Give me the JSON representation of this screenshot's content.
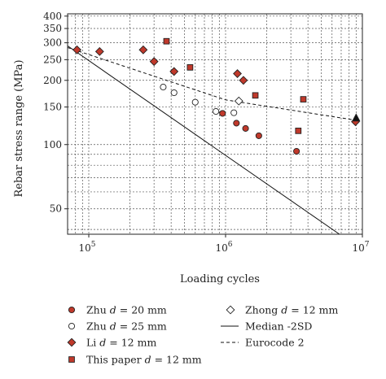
{
  "chart_data": {
    "type": "scatter",
    "xlabel": "Loading cycles",
    "ylabel": "Rebar stress range (MPa)",
    "xscale": "log",
    "yscale": "log",
    "xlim": [
      70000,
      10000000
    ],
    "ylim": [
      38,
      410
    ],
    "grid": true,
    "x_ticks": [
      {
        "value": 100000,
        "base": "10",
        "exp": "5"
      },
      {
        "value": 1000000,
        "base": "10",
        "exp": "6"
      },
      {
        "value": 10000000,
        "base": "10",
        "exp": "7"
      }
    ],
    "y_ticks": [
      {
        "value": 50,
        "label": "50"
      },
      {
        "value": 100,
        "label": "100"
      },
      {
        "value": 150,
        "label": "150"
      },
      {
        "value": 200,
        "label": "200"
      },
      {
        "value": 250,
        "label": "250"
      },
      {
        "value": 300,
        "label": "300"
      },
      {
        "value": 350,
        "label": "350"
      },
      {
        "value": 400,
        "label": "400"
      }
    ],
    "legend_position": "bottom",
    "series": [
      {
        "name": "Zhu d = 20 mm",
        "name_parts": [
          "Zhu ",
          "d",
          " = 20 mm"
        ],
        "marker": "circle-filled",
        "color": "#c0392b",
        "points": [
          [
            950000,
            140
          ],
          [
            1200000,
            126
          ],
          [
            1400000,
            119
          ],
          [
            1750000,
            110
          ],
          [
            3300000,
            93
          ]
        ]
      },
      {
        "name": "Zhu d = 25 mm",
        "name_parts": [
          "Zhu ",
          "d",
          " = 25 mm"
        ],
        "marker": "circle-open",
        "color": "#ffffff",
        "points": [
          [
            350000,
            186
          ],
          [
            420000,
            175
          ],
          [
            600000,
            158
          ],
          [
            850000,
            143
          ],
          [
            1150000,
            141
          ]
        ]
      },
      {
        "name": "Li d = 12 mm",
        "name_parts": [
          "Li ",
          "d",
          " = 12 mm"
        ],
        "marker": "diamond-filled",
        "color": "#c0392b",
        "points": [
          [
            82000,
            278
          ],
          [
            120000,
            273
          ],
          [
            250000,
            278
          ],
          [
            300000,
            245
          ],
          [
            420000,
            220
          ],
          [
            1220000,
            215
          ],
          [
            1350000,
            200
          ],
          [
            8900000,
            128
          ]
        ]
      },
      {
        "name": "This paper d = 12 mm",
        "name_parts": [
          "This paper ",
          "d",
          " = 12 mm"
        ],
        "marker": "square-filled",
        "color": "#c0392b",
        "points": [
          [
            370000,
            305
          ],
          [
            550000,
            230
          ],
          [
            1650000,
            170
          ],
          [
            3400000,
            116
          ],
          [
            3700000,
            163
          ]
        ]
      },
      {
        "name": "Zhong d = 12 mm",
        "name_parts": [
          "Zhong ",
          "d",
          " = 12 mm"
        ],
        "marker": "diamond-open",
        "color": "#ffffff",
        "points": [
          [
            1250000,
            160
          ]
        ]
      },
      {
        "name": "Median -2SD",
        "name_parts": [
          "Median -2SD"
        ],
        "marker": "line-solid",
        "color": "#111111",
        "points": [
          [
            70000,
            290
          ],
          [
            6800000,
            38
          ]
        ]
      },
      {
        "name": "Eurocode 2",
        "name_parts": [
          "Eurocode 2"
        ],
        "marker": "line-dashed",
        "color": "#111111",
        "points": [
          [
            70000,
            285
          ],
          [
            1000000,
            162
          ],
          [
            9000000,
            130
          ]
        ]
      },
      {
        "name": "",
        "name_parts": [],
        "marker": "triangle-filled",
        "color": "#111111",
        "points": [
          [
            9000000,
            133
          ]
        ]
      }
    ]
  }
}
